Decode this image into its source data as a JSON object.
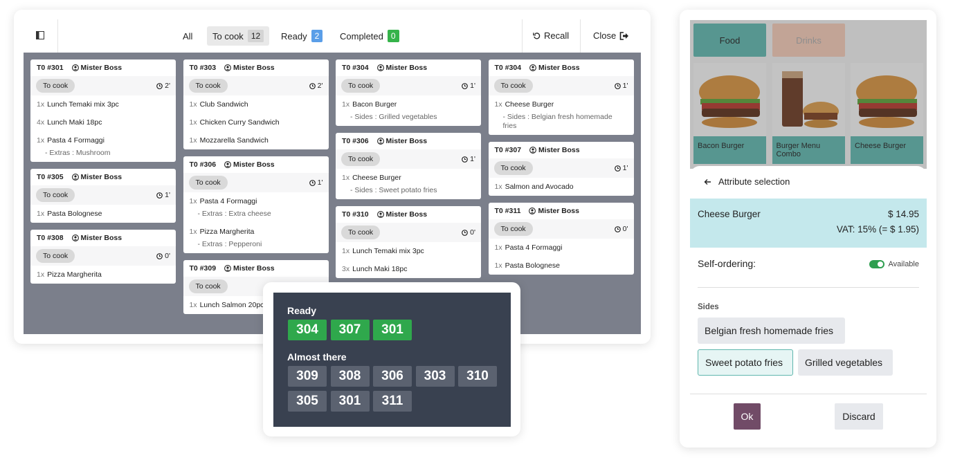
{
  "kds": {
    "tabs": [
      {
        "label": "All"
      },
      {
        "label": "To cook",
        "count": 12
      },
      {
        "label": "Ready",
        "count": 2
      },
      {
        "label": "Completed",
        "count": 0
      }
    ],
    "actions": [
      "Recall",
      "Close"
    ],
    "columns": [
      [
        {
          "ticket": "T0 #301",
          "customer": "Mister Boss",
          "status": "To cook",
          "time": "2'",
          "lines": [
            {
              "qty": "1x",
              "item": "Lunch Temaki mix 3pc"
            },
            {
              "qty": "4x",
              "item": "Lunch Maki 18pc"
            },
            {
              "qty": "1x",
              "item": "Pasta 4 Formaggi",
              "note": "- Extras : Mushroom"
            }
          ]
        },
        {
          "ticket": "T0 #305",
          "customer": "Mister Boss",
          "status": "To cook",
          "time": "1'",
          "lines": [
            {
              "qty": "1x",
              "item": "Pasta Bolognese"
            }
          ]
        },
        {
          "ticket": "T0 #308",
          "customer": "Mister Boss",
          "status": "To cook",
          "time": "0'",
          "lines": [
            {
              "qty": "1x",
              "item": "Pizza Margherita"
            }
          ]
        }
      ],
      [
        {
          "ticket": "T0 #303",
          "customer": "Mister Boss",
          "status": "To cook",
          "time": "2'",
          "lines": [
            {
              "qty": "1x",
              "item": "Club Sandwich"
            },
            {
              "qty": "1x",
              "item": "Chicken Curry Sandwich"
            },
            {
              "qty": "1x",
              "item": "Mozzarella Sandwich"
            }
          ]
        },
        {
          "ticket": "T0 #306",
          "customer": "Mister Boss",
          "status": "To cook",
          "time": "1'",
          "lines": [
            {
              "qty": "1x",
              "item": "Pasta 4 Formaggi",
              "note": "- Extras : Extra cheese"
            },
            {
              "qty": "1x",
              "item": "Pizza Margherita",
              "note": "- Extras : Pepperoni"
            }
          ]
        },
        {
          "ticket": "T0 #309",
          "customer": "Mister Boss",
          "status": "To cook",
          "lines": [
            {
              "qty": "1x",
              "item": "Lunch Salmon 20pc"
            }
          ]
        }
      ],
      [
        {
          "ticket": "T0 #304",
          "customer": "Mister Boss",
          "status": "To cook",
          "time": "1'",
          "lines": [
            {
              "qty": "1x",
              "item": "Bacon Burger",
              "note": "- Sides : Grilled vegetables"
            }
          ]
        },
        {
          "ticket": "T0 #306",
          "customer": "Mister Boss",
          "status": "To cook",
          "time": "1'",
          "lines": [
            {
              "qty": "1x",
              "item": "Cheese Burger",
              "note": "- Sides : Sweet potato fries"
            }
          ]
        },
        {
          "ticket": "T0 #310",
          "customer": "Mister Boss",
          "status": "To cook",
          "time": "0'",
          "lines": [
            {
              "qty": "1x",
              "item": "Lunch Temaki mix 3pc"
            },
            {
              "qty": "3x",
              "item": "Lunch Maki 18pc"
            }
          ]
        }
      ],
      [
        {
          "ticket": "T0 #304",
          "customer": "Mister Boss",
          "status": "To cook",
          "time": "1'",
          "lines": [
            {
              "qty": "1x",
              "item": "Cheese Burger",
              "note": "- Sides : Belgian fresh homemade fries"
            }
          ]
        },
        {
          "ticket": "T0 #307",
          "customer": "Mister Boss",
          "status": "To cook",
          "time": "1'",
          "lines": [
            {
              "qty": "1x",
              "item": "Salmon and Avocado"
            }
          ]
        },
        {
          "ticket": "T0 #311",
          "customer": "Mister Boss",
          "status": "To cook",
          "time": "0'",
          "lines": [
            {
              "qty": "1x",
              "item": "Pasta 4 Formaggi"
            },
            {
              "qty": "1x",
              "item": "Pasta Bolognese"
            }
          ]
        }
      ]
    ]
  },
  "display": {
    "ready_title": "Ready",
    "ready": [
      "304",
      "307",
      "301"
    ],
    "almost_title": "Almost there",
    "almost": [
      "309",
      "308",
      "306",
      "303",
      "310",
      "305",
      "301",
      "311"
    ]
  },
  "product_panel": {
    "categories": [
      "Food",
      "Drinks"
    ],
    "products": [
      "Bacon Burger",
      "Burger Menu Combo",
      "Cheese Burger"
    ],
    "title": "Attribute selection",
    "product": "Cheese Burger",
    "price": "$ 14.95",
    "vat": "VAT: 15% (= $ 1.95)",
    "self_ordering": "Self-ordering:",
    "availability": "Available",
    "group": "Sides",
    "options": [
      "Belgian fresh homemade fries",
      "Sweet potato fries",
      "Grilled vegetables"
    ],
    "selected": 1,
    "buttons": [
      "Ok",
      "Discard"
    ]
  }
}
